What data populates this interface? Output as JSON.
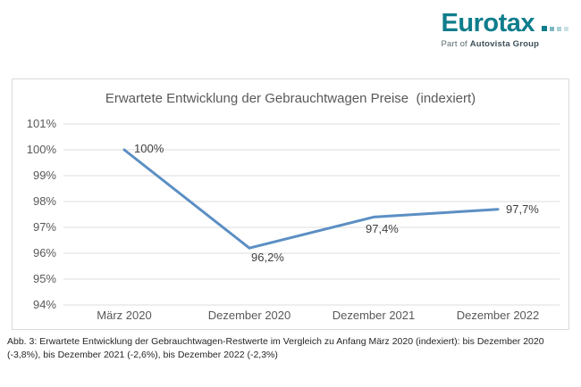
{
  "logo": {
    "brand": "Eurotax",
    "tagline_prefix": "Part of",
    "tagline_brand": "Autovista Group",
    "brand_color": "#0F7D8C"
  },
  "chart_data": {
    "type": "line",
    "title": "Erwartete Entwicklung der Gebrauchtwagen Preise  (indexiert)",
    "categories": [
      "März 2020",
      "Dezember 2020",
      "Dezember 2021",
      "Dezember 2022"
    ],
    "values": [
      100,
      96.2,
      97.4,
      97.7
    ],
    "point_labels": [
      "100%",
      "96,2%",
      "97,4%",
      "97,7%"
    ],
    "xlabel": "",
    "ylabel": "",
    "ylim": [
      94,
      101
    ],
    "yticks": [
      101,
      100,
      99,
      98,
      97,
      96,
      95,
      94
    ],
    "ytick_suffix": "%",
    "grid": "horizontal",
    "legend": "none",
    "line_color": "#5B8FC4",
    "gridline_color": "#DCDCDC"
  },
  "caption": "Abb. 3: Erwartete Entwicklung der Gebrauchtwagen-Restwerte im Vergleich zu Anfang März 2020 (indexiert): bis Dezember 2020 (-3,8%), bis Dezember 2021 (-2,6%), bis Dezember 2022 (-2,3%)"
}
